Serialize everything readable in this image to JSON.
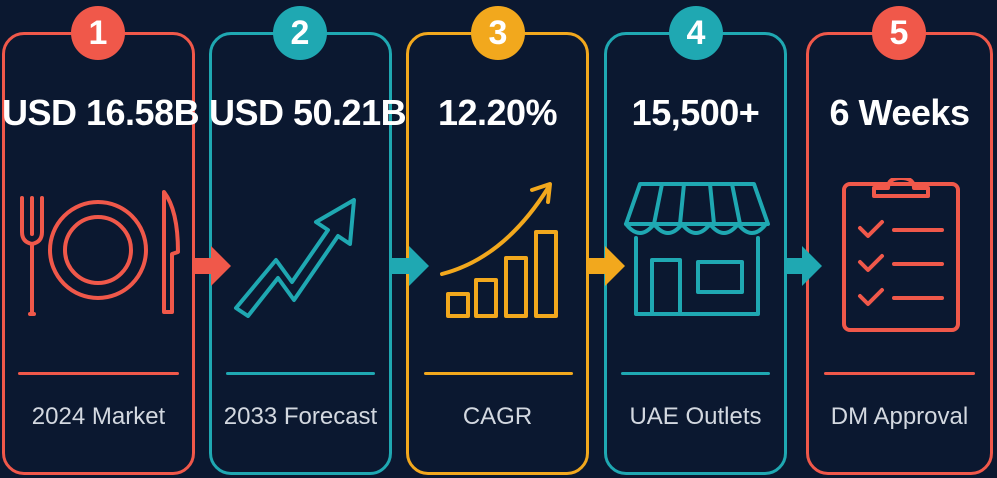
{
  "steps": [
    {
      "number": "1",
      "value": "USD 16.58B",
      "label": "2024 Market",
      "icon": "plate-fork-knife-icon",
      "color": "#f0584a"
    },
    {
      "number": "2",
      "value": "USD 50.21B",
      "label": "2033 Forecast",
      "icon": "trend-up-arrow-icon",
      "color": "#1fa8b2"
    },
    {
      "number": "3",
      "value": "12.20%",
      "label": "CAGR",
      "icon": "growth-bar-chart-icon",
      "color": "#f2a81d"
    },
    {
      "number": "4",
      "value": "15,500+",
      "label": "UAE Outlets",
      "icon": "storefront-icon",
      "color": "#1fa8b2"
    },
    {
      "number": "5",
      "value": "6 Weeks",
      "label": "DM Approval",
      "icon": "clipboard-checklist-icon",
      "color": "#f0584a"
    }
  ],
  "connectors": [
    {
      "icon": "arrow-right-icon",
      "color": "#f0584a"
    },
    {
      "icon": "arrow-right-icon",
      "color": "#1fa8b2"
    },
    {
      "icon": "arrow-right-icon",
      "color": "#f2a81d"
    },
    {
      "icon": "arrow-right-icon",
      "color": "#1fa8b2"
    }
  ],
  "background": "#0b1830"
}
